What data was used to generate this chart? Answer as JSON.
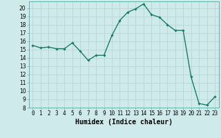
{
  "x": [
    0,
    1,
    2,
    3,
    4,
    5,
    6,
    7,
    8,
    9,
    10,
    11,
    12,
    13,
    14,
    15,
    16,
    17,
    18,
    19,
    20,
    21,
    22,
    23
  ],
  "y": [
    15.5,
    15.2,
    15.3,
    15.1,
    15.1,
    15.8,
    14.8,
    13.7,
    14.3,
    14.3,
    16.7,
    18.5,
    19.5,
    19.9,
    20.5,
    19.2,
    18.9,
    18.0,
    17.3,
    17.3,
    11.7,
    8.5,
    8.3,
    9.3
  ],
  "line_color": "#1a7a6a",
  "marker": "D",
  "marker_size": 1.8,
  "line_width": 1.0,
  "xlabel": "Humidex (Indice chaleur)",
  "xlim": [
    -0.5,
    23.5
  ],
  "ylim": [
    8,
    20.8
  ],
  "yticks": [
    8,
    9,
    10,
    11,
    12,
    13,
    14,
    15,
    16,
    17,
    18,
    19,
    20
  ],
  "xtick_labels": [
    "0",
    "1",
    "2",
    "3",
    "4",
    "5",
    "6",
    "7",
    "8",
    "9",
    "10",
    "11",
    "12",
    "13",
    "14",
    "15",
    "16",
    "17",
    "18",
    "19",
    "20",
    "21",
    "22",
    "23"
  ],
  "bg_color": "#ceeaea",
  "grid_color": "#b8d4d4",
  "tick_fontsize": 5.5,
  "label_fontsize": 7.0
}
